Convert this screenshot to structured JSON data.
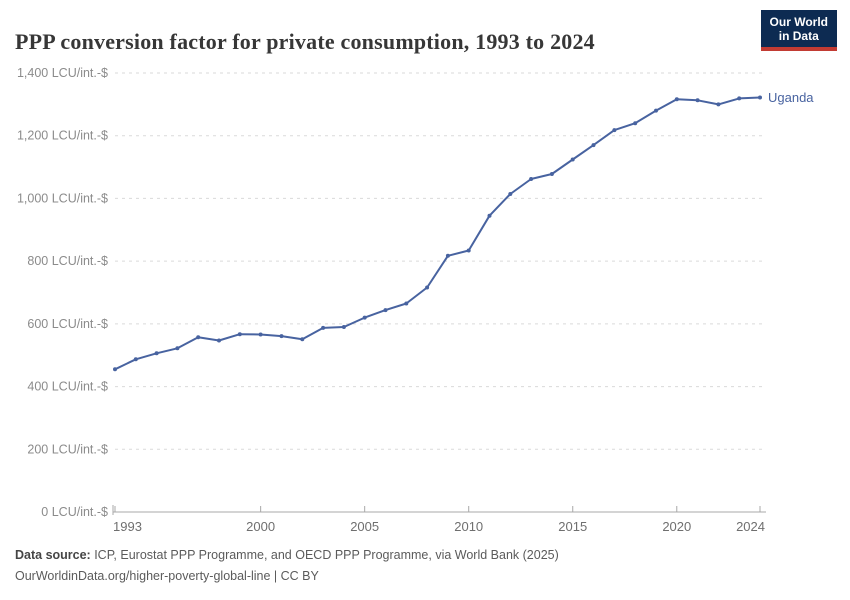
{
  "header": {
    "logo": {
      "line1": "Our World",
      "line2": "in Data"
    }
  },
  "chart_data": {
    "type": "line",
    "title": "PPP conversion factor for private consumption, 1993 to 2024",
    "entity": "Uganda",
    "unit_suffix": " LCU/int.-$",
    "x": [
      1993,
      1994,
      1995,
      1996,
      1997,
      1998,
      1999,
      2000,
      2001,
      2002,
      2003,
      2004,
      2005,
      2006,
      2007,
      2008,
      2009,
      2010,
      2011,
      2012,
      2013,
      2014,
      2015,
      2016,
      2017,
      2018,
      2019,
      2020,
      2021,
      2022,
      2023,
      2024
    ],
    "series": [
      {
        "name": "Uganda",
        "values": [
          455,
          487,
          506,
          522,
          557,
          547,
          567,
          566,
          561,
          551,
          587,
          590,
          620,
          644,
          665,
          716,
          817,
          834,
          945,
          1014,
          1062,
          1078,
          1124,
          1170,
          1218,
          1240,
          1280,
          1316,
          1313,
          1300,
          1319,
          1322
        ]
      }
    ],
    "xticks": [
      1993,
      2000,
      2005,
      2010,
      2015,
      2020,
      2024
    ],
    "yticks": [
      0,
      200,
      400,
      600,
      800,
      1000,
      1200,
      1400
    ],
    "xlim": [
      1993,
      2024
    ],
    "ylim": [
      0,
      1400
    ],
    "grid": true,
    "legend_position": "end-of-line",
    "line_color": "#4863a0",
    "grid_color": "#dadada",
    "axis_color": "#a8a8a8",
    "ylabel_color": "#8b8b8b",
    "xlabel_color": "#6f6f6f"
  },
  "footer": {
    "source_label": "Data source:",
    "source_text": " ICP, Eurostat PPP Programme, and OECD PPP Programme, via World Bank (2025)",
    "license_text": "OurWorldinData.org/higher-poverty-global-line | CC BY"
  }
}
